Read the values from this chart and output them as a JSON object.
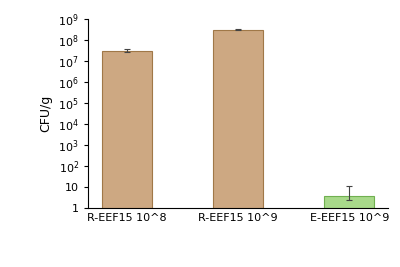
{
  "categories": [
    "R-EEF15 10^8",
    "R-EEF15 10^9",
    "E-EEF15 10^9"
  ],
  "values": [
    30000000.0,
    300000000.0,
    4.0
  ],
  "error_upper": [
    8000000.0,
    40000000.0,
    7.0
  ],
  "error_lower": [
    4000000.0,
    15000000.0,
    1.5
  ],
  "bar_colors": [
    "#CDA882",
    "#CDA882",
    "#A8D98A"
  ],
  "bar_edge_colors": [
    "#A07848",
    "#A07848",
    "#70B050"
  ],
  "ylabel": "CFU/g",
  "ylim_min": 1,
  "ylim_max": 1000000000.0,
  "figsize": [
    4.0,
    2.67
  ],
  "dpi": 100,
  "bar_width": 0.45
}
